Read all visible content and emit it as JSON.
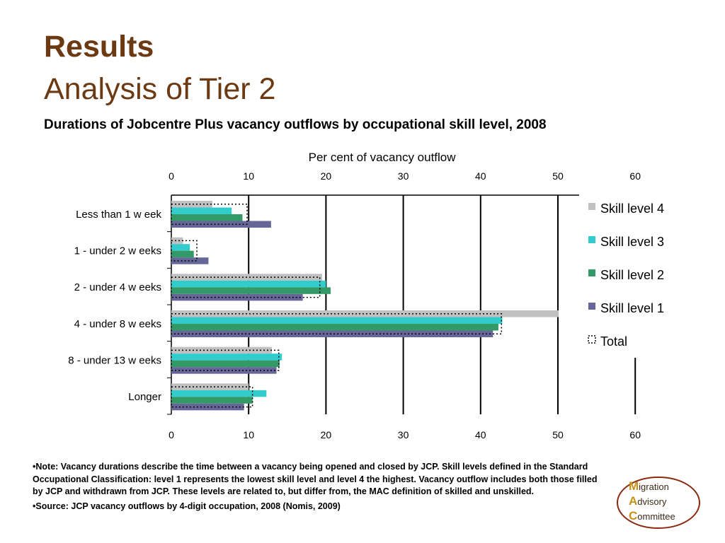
{
  "slide": {
    "title": "Results",
    "subtitle_title": "Analysis of Tier 2",
    "chart_heading": "Durations of Jobcentre Plus vacancy outflows by occupational skill level, 2008"
  },
  "notes": {
    "note": "•Note: Vacancy durations describe the time between a vacancy being opened and closed by JCP. Skill levels defined in the Standard Occupational Classification: level 1 represents the lowest skill level and level 4 the highest. Vacancy outflow includes both those filled by JCP and withdrawn from JCP. These levels are related to, but differ from, the MAC definition of skilled and unskilled.",
    "source": "•Source: JCP vacancy outflows by 4-digit occupation, 2008 (Nomis, 2009)"
  },
  "logo": {
    "line1_initial": "M",
    "line1_rest": "igration",
    "line2_initial": "A",
    "line2_rest": "dvisory",
    "line3_initial": "C",
    "line3_rest": "ommittee"
  },
  "chart_data": {
    "type": "bar",
    "orientation": "horizontal",
    "xlabel": "Per cent of vacancy outflow",
    "xlim": [
      0,
      60
    ],
    "xticks": [
      "0",
      "10",
      "20",
      "30",
      "40",
      "50",
      "60"
    ],
    "grid": true,
    "legend_position": "right",
    "categories": [
      "Less than 1 w eek",
      "1 - under 2 w eeks",
      "2 - under 4 w eeks",
      "4 - under 8 w eeks",
      "8 - under 13 w eeks",
      "Longer"
    ],
    "series": [
      {
        "name": "Skill level 4",
        "color": "#c0c0c0",
        "values": [
          5.3,
          1.5,
          19.5,
          50.1,
          13.0,
          10.0
        ]
      },
      {
        "name": "Skill level 3",
        "color": "#33cccc",
        "values": [
          7.8,
          2.4,
          20.0,
          42.8,
          14.3,
          12.3
        ]
      },
      {
        "name": "Skill level 2",
        "color": "#339966",
        "values": [
          9.2,
          2.9,
          20.6,
          42.3,
          14.0,
          10.5
        ]
      },
      {
        "name": "Skill level 1",
        "color": "#666699",
        "values": [
          12.9,
          4.8,
          17.0,
          41.6,
          13.6,
          9.4
        ]
      },
      {
        "name": "Total",
        "color": "#ffffff",
        "style": "dotted-outline",
        "values": [
          9.8,
          3.3,
          19.2,
          42.7,
          13.9,
          10.5
        ]
      }
    ]
  }
}
